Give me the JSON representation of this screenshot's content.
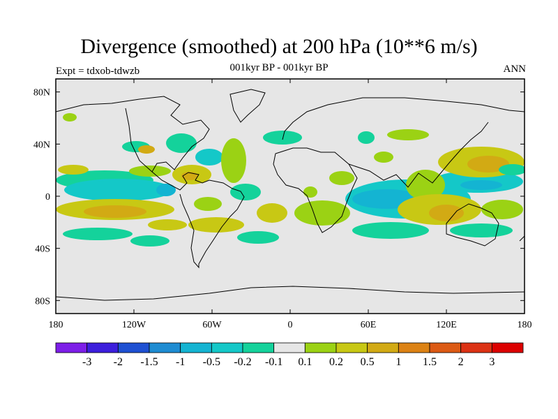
{
  "title": "Divergence (smoothed) at 200 hPa (10**6 m/s)",
  "subtitle": "001kyr BP - 001kyr BP",
  "expt_label": "Expt = tdxob-tdwzb",
  "period_label": "ANN",
  "map": {
    "lon_ticks": [
      "180",
      "120W",
      "60W",
      "0",
      "60E",
      "120E",
      "180"
    ],
    "lat_ticks": [
      "80N",
      "40N",
      "0",
      "40S",
      "80S"
    ],
    "land_outline_color": "#000000",
    "background_color": "#e6e6e6"
  },
  "colorbar": {
    "colors": [
      "#7d1ee8",
      "#3c1edc",
      "#1e50d2",
      "#1e8cd2",
      "#14b4d2",
      "#14c8c8",
      "#14d29b",
      "#e6e6e6",
      "#9bd214",
      "#c8c814",
      "#d2aa14",
      "#dc8214",
      "#dc5a14",
      "#dc3214",
      "#dc0000"
    ],
    "labels": [
      "-3",
      "-2",
      "-1.5",
      "-1",
      "-0.5",
      "-0.2",
      "-0.1",
      "0.1",
      "0.2",
      "0.5",
      "1",
      "1.5",
      "2",
      "3"
    ]
  }
}
